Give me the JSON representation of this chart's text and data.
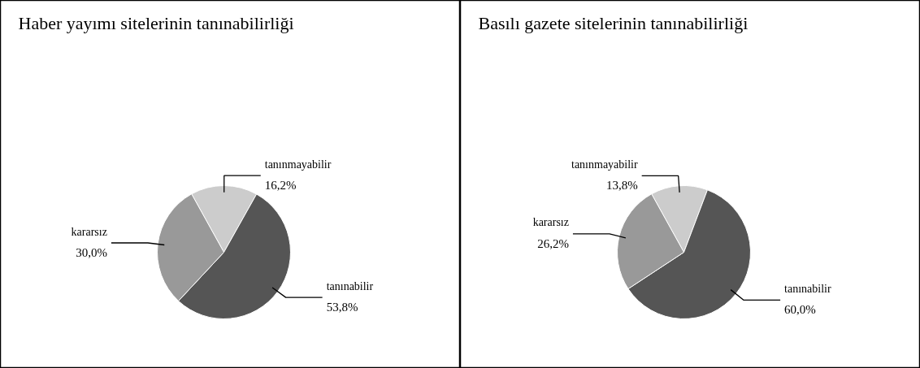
{
  "chart_data": [
    {
      "type": "pie",
      "title": "Haber yayımı sitelerinin tanınabilirliği",
      "categories": [
        "tanınmayabilir",
        "tanınabilir",
        "kararsız"
      ],
      "values": [
        16.2,
        53.8,
        30.0
      ],
      "value_labels": [
        "16,2%",
        "53,8%",
        "30,0%"
      ],
      "colors": [
        "#cccccc",
        "#555555",
        "#999999"
      ]
    },
    {
      "type": "pie",
      "title": "Basılı gazete sitelerinin tanınabilirliği",
      "categories": [
        "tanınmayabilir",
        "tanınabilir",
        "kararsız"
      ],
      "values": [
        13.8,
        60.0,
        26.2
      ],
      "value_labels": [
        "13,8%",
        "60,0%",
        "26,2%"
      ],
      "colors": [
        "#cccccc",
        "#555555",
        "#999999"
      ]
    }
  ]
}
